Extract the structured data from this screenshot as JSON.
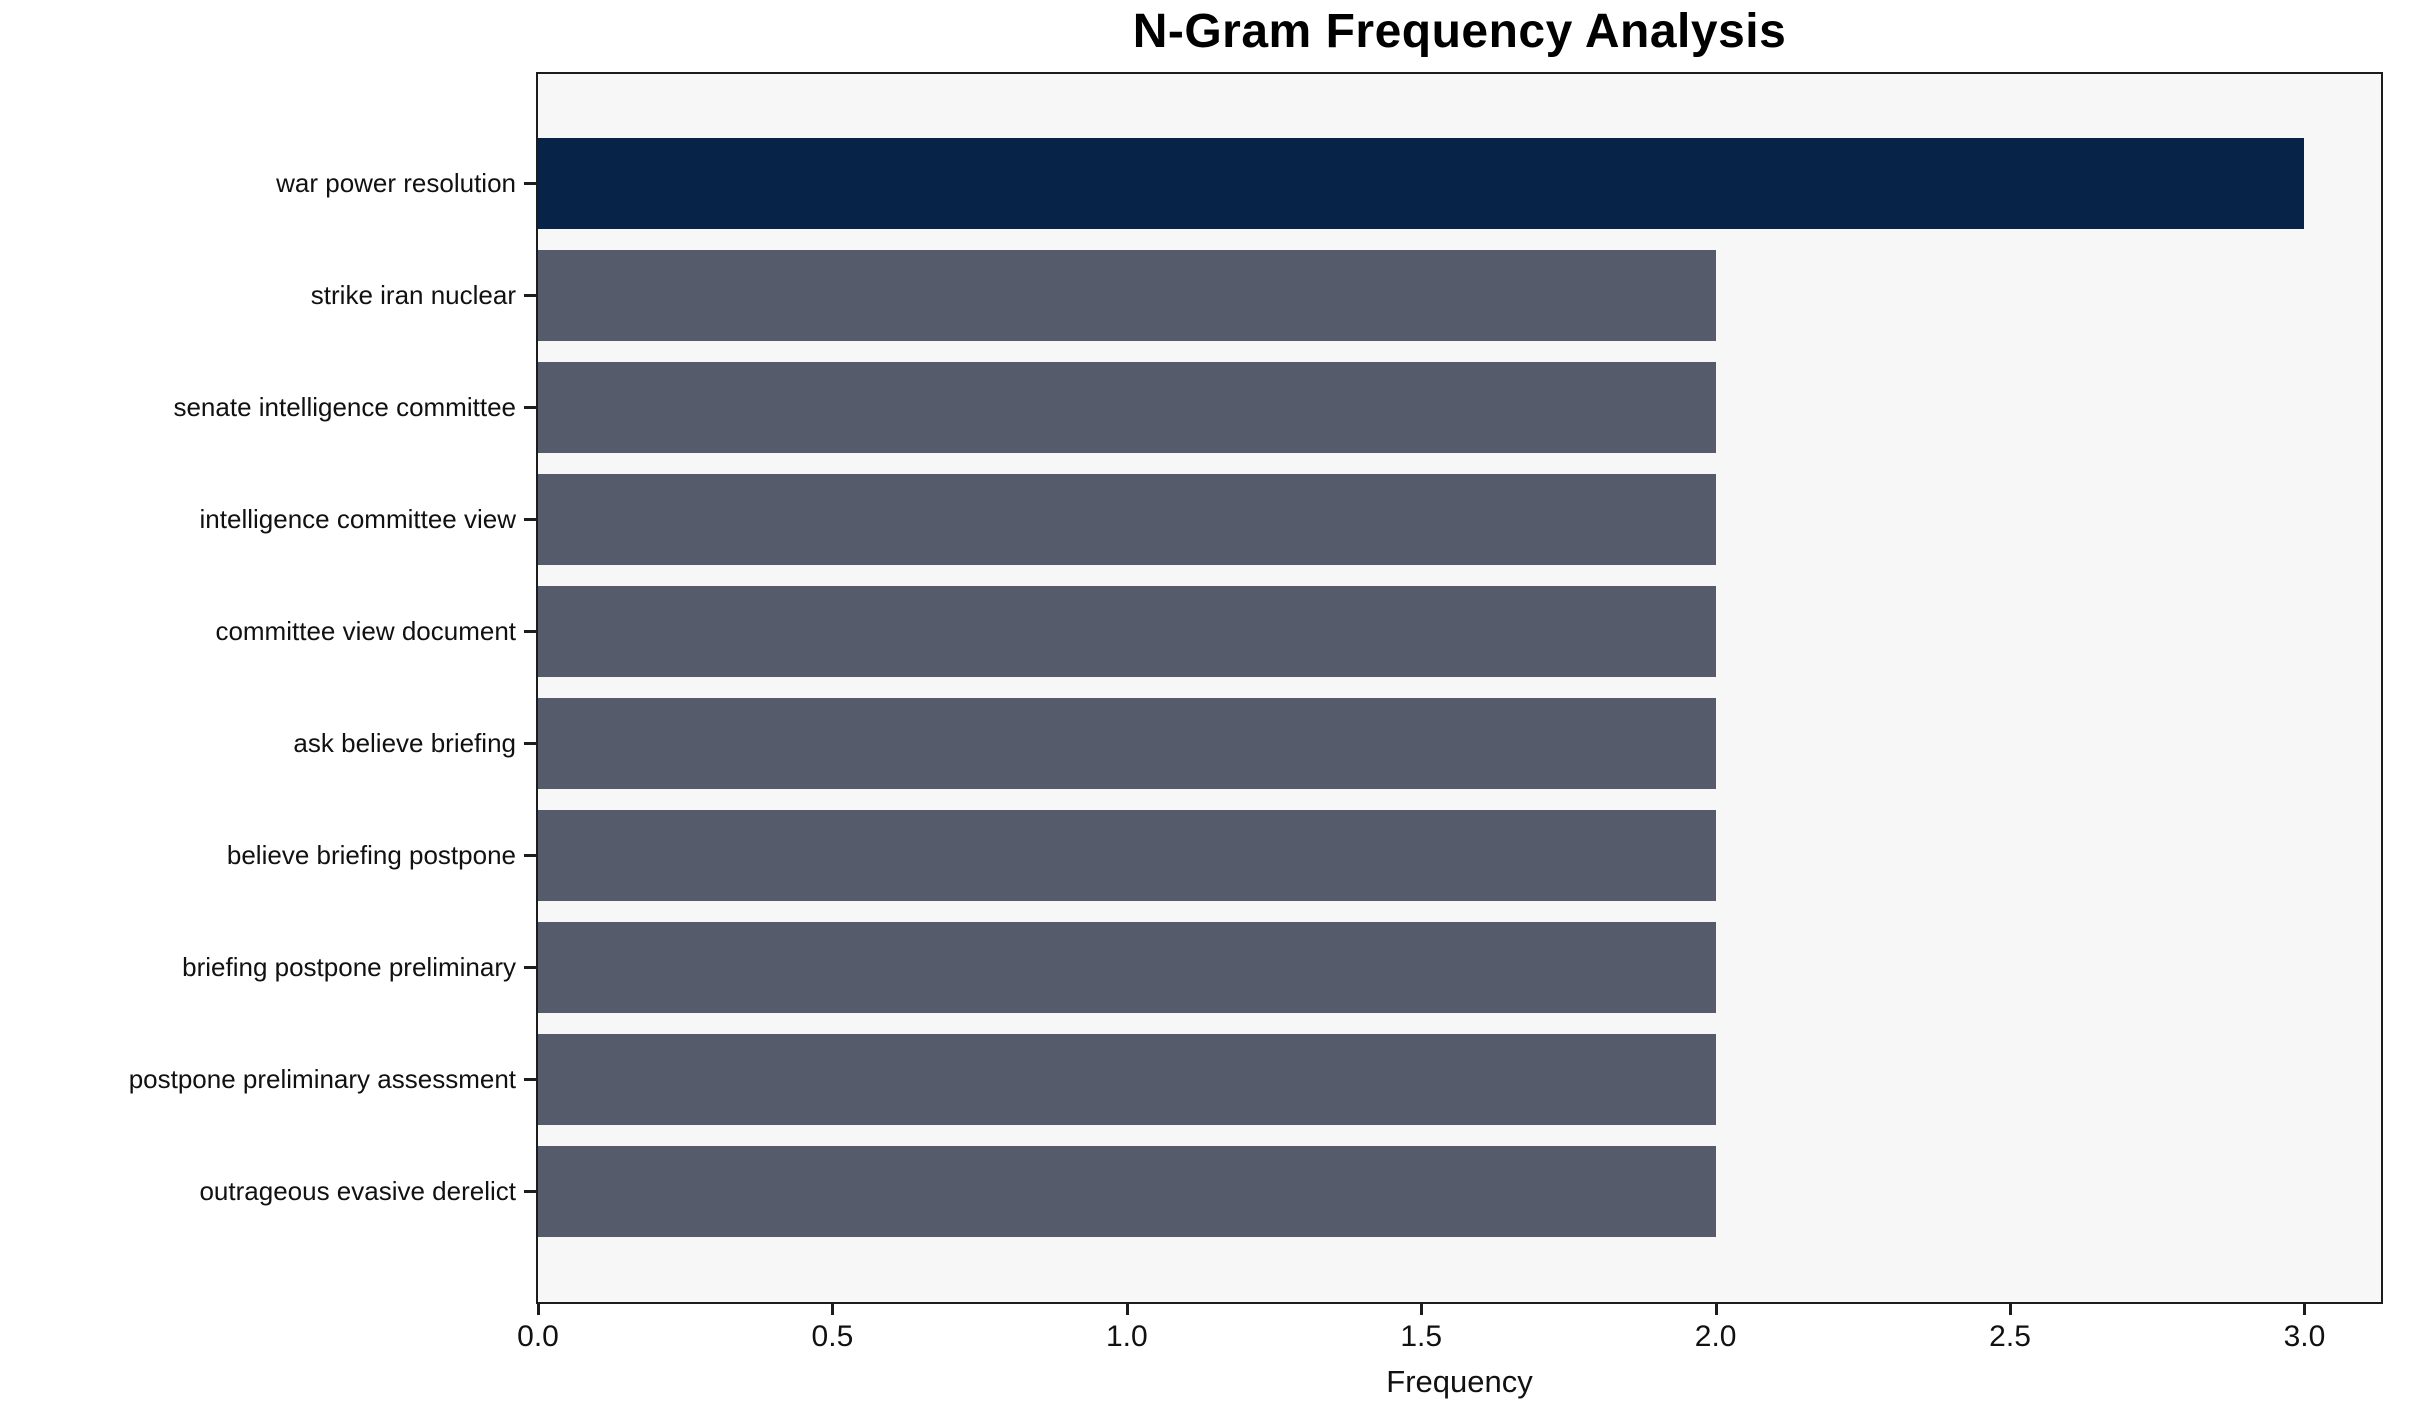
{
  "chart_data": {
    "type": "bar",
    "orientation": "horizontal",
    "title": "N-Gram Frequency Analysis",
    "xlabel": "Frequency",
    "ylabel": "",
    "categories": [
      "war power resolution",
      "strike iran nuclear",
      "senate intelligence committee",
      "intelligence committee view",
      "committee view document",
      "ask believe briefing",
      "believe briefing postpone",
      "briefing postpone preliminary",
      "postpone preliminary assessment",
      "outrageous evasive derelict"
    ],
    "values": [
      3,
      2,
      2,
      2,
      2,
      2,
      2,
      2,
      2,
      2
    ],
    "bar_colors": [
      "#072448",
      "#565b6b",
      "#565b6b",
      "#565b6b",
      "#565b6b",
      "#565b6b",
      "#565b6b",
      "#565b6b",
      "#565b6b",
      "#565b6b"
    ],
    "xlim": [
      0,
      3.13
    ],
    "x_ticks": [
      0.0,
      0.5,
      1.0,
      1.5,
      2.0,
      2.5,
      3.0
    ],
    "x_tick_labels": [
      "0.0",
      "0.5",
      "1.0",
      "1.5",
      "2.0",
      "2.5",
      "3.0"
    ],
    "grid": false,
    "legend": null,
    "plot_background": "#f7f7f7",
    "figure_background": "#ffffff",
    "spine_color": "#1c1c1c"
  }
}
